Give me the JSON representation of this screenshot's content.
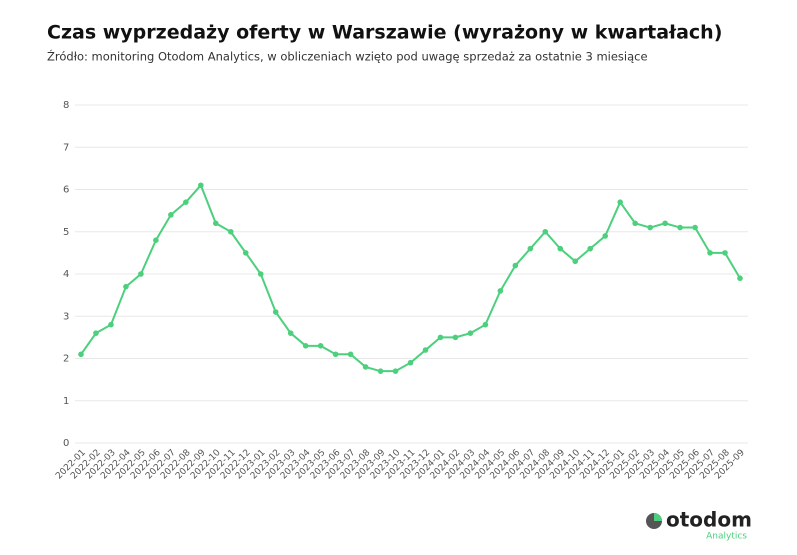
{
  "chart_data": {
    "type": "line",
    "title": "Czas wyprzedaży oferty w Warszawie (wyrażony w kwartałach)",
    "subtitle": "Źródło: monitoring Otodom Analytics, w obliczeniach wzięto pod uwagę sprzedaż za ostatnie 3 miesiące",
    "categories": [
      "2022-01",
      "2022-02",
      "2022-03",
      "2022-04",
      "2022-05",
      "2022-06",
      "2022-07",
      "2022-08",
      "2022-09",
      "2022-10",
      "2022-11",
      "2022-12",
      "2023-01",
      "2023-02",
      "2023-03",
      "2023-04",
      "2023-05",
      "2023-06",
      "2023-07",
      "2023-08",
      "2023-09",
      "2023-10",
      "2023-11",
      "2023-12",
      "2024-01",
      "2024-02",
      "2024-03",
      "2024-04",
      "2024-05",
      "2024-06",
      "2024-07",
      "2024-08",
      "2024-09",
      "2024-10",
      "2024-11",
      "2024-12",
      "2025-01",
      "2025-02",
      "2025-03",
      "2025-04",
      "2025-05",
      "2025-06",
      "2025-07",
      "2025-08",
      "2025-09"
    ],
    "values": [
      2.1,
      2.6,
      2.8,
      3.7,
      4.0,
      4.8,
      5.4,
      5.7,
      6.1,
      5.2,
      5.0,
      4.5,
      4.0,
      3.1,
      2.6,
      2.3,
      2.3,
      2.1,
      2.1,
      1.8,
      1.7,
      1.7,
      1.9,
      2.2,
      2.5,
      2.5,
      2.6,
      2.8,
      3.6,
      4.2,
      4.6,
      5.0,
      4.6,
      4.3,
      4.6,
      4.9,
      5.7,
      5.2,
      5.1,
      5.2,
      5.1,
      5.1,
      4.5,
      4.5,
      3.9
    ],
    "color": "#4cd07d",
    "ylim": [
      0,
      8
    ],
    "yticks": [
      0,
      1,
      2,
      3,
      4,
      5,
      6,
      7,
      8
    ],
    "grid": true
  },
  "logo": {
    "name": "otodom",
    "subtitle": "Analytics"
  }
}
